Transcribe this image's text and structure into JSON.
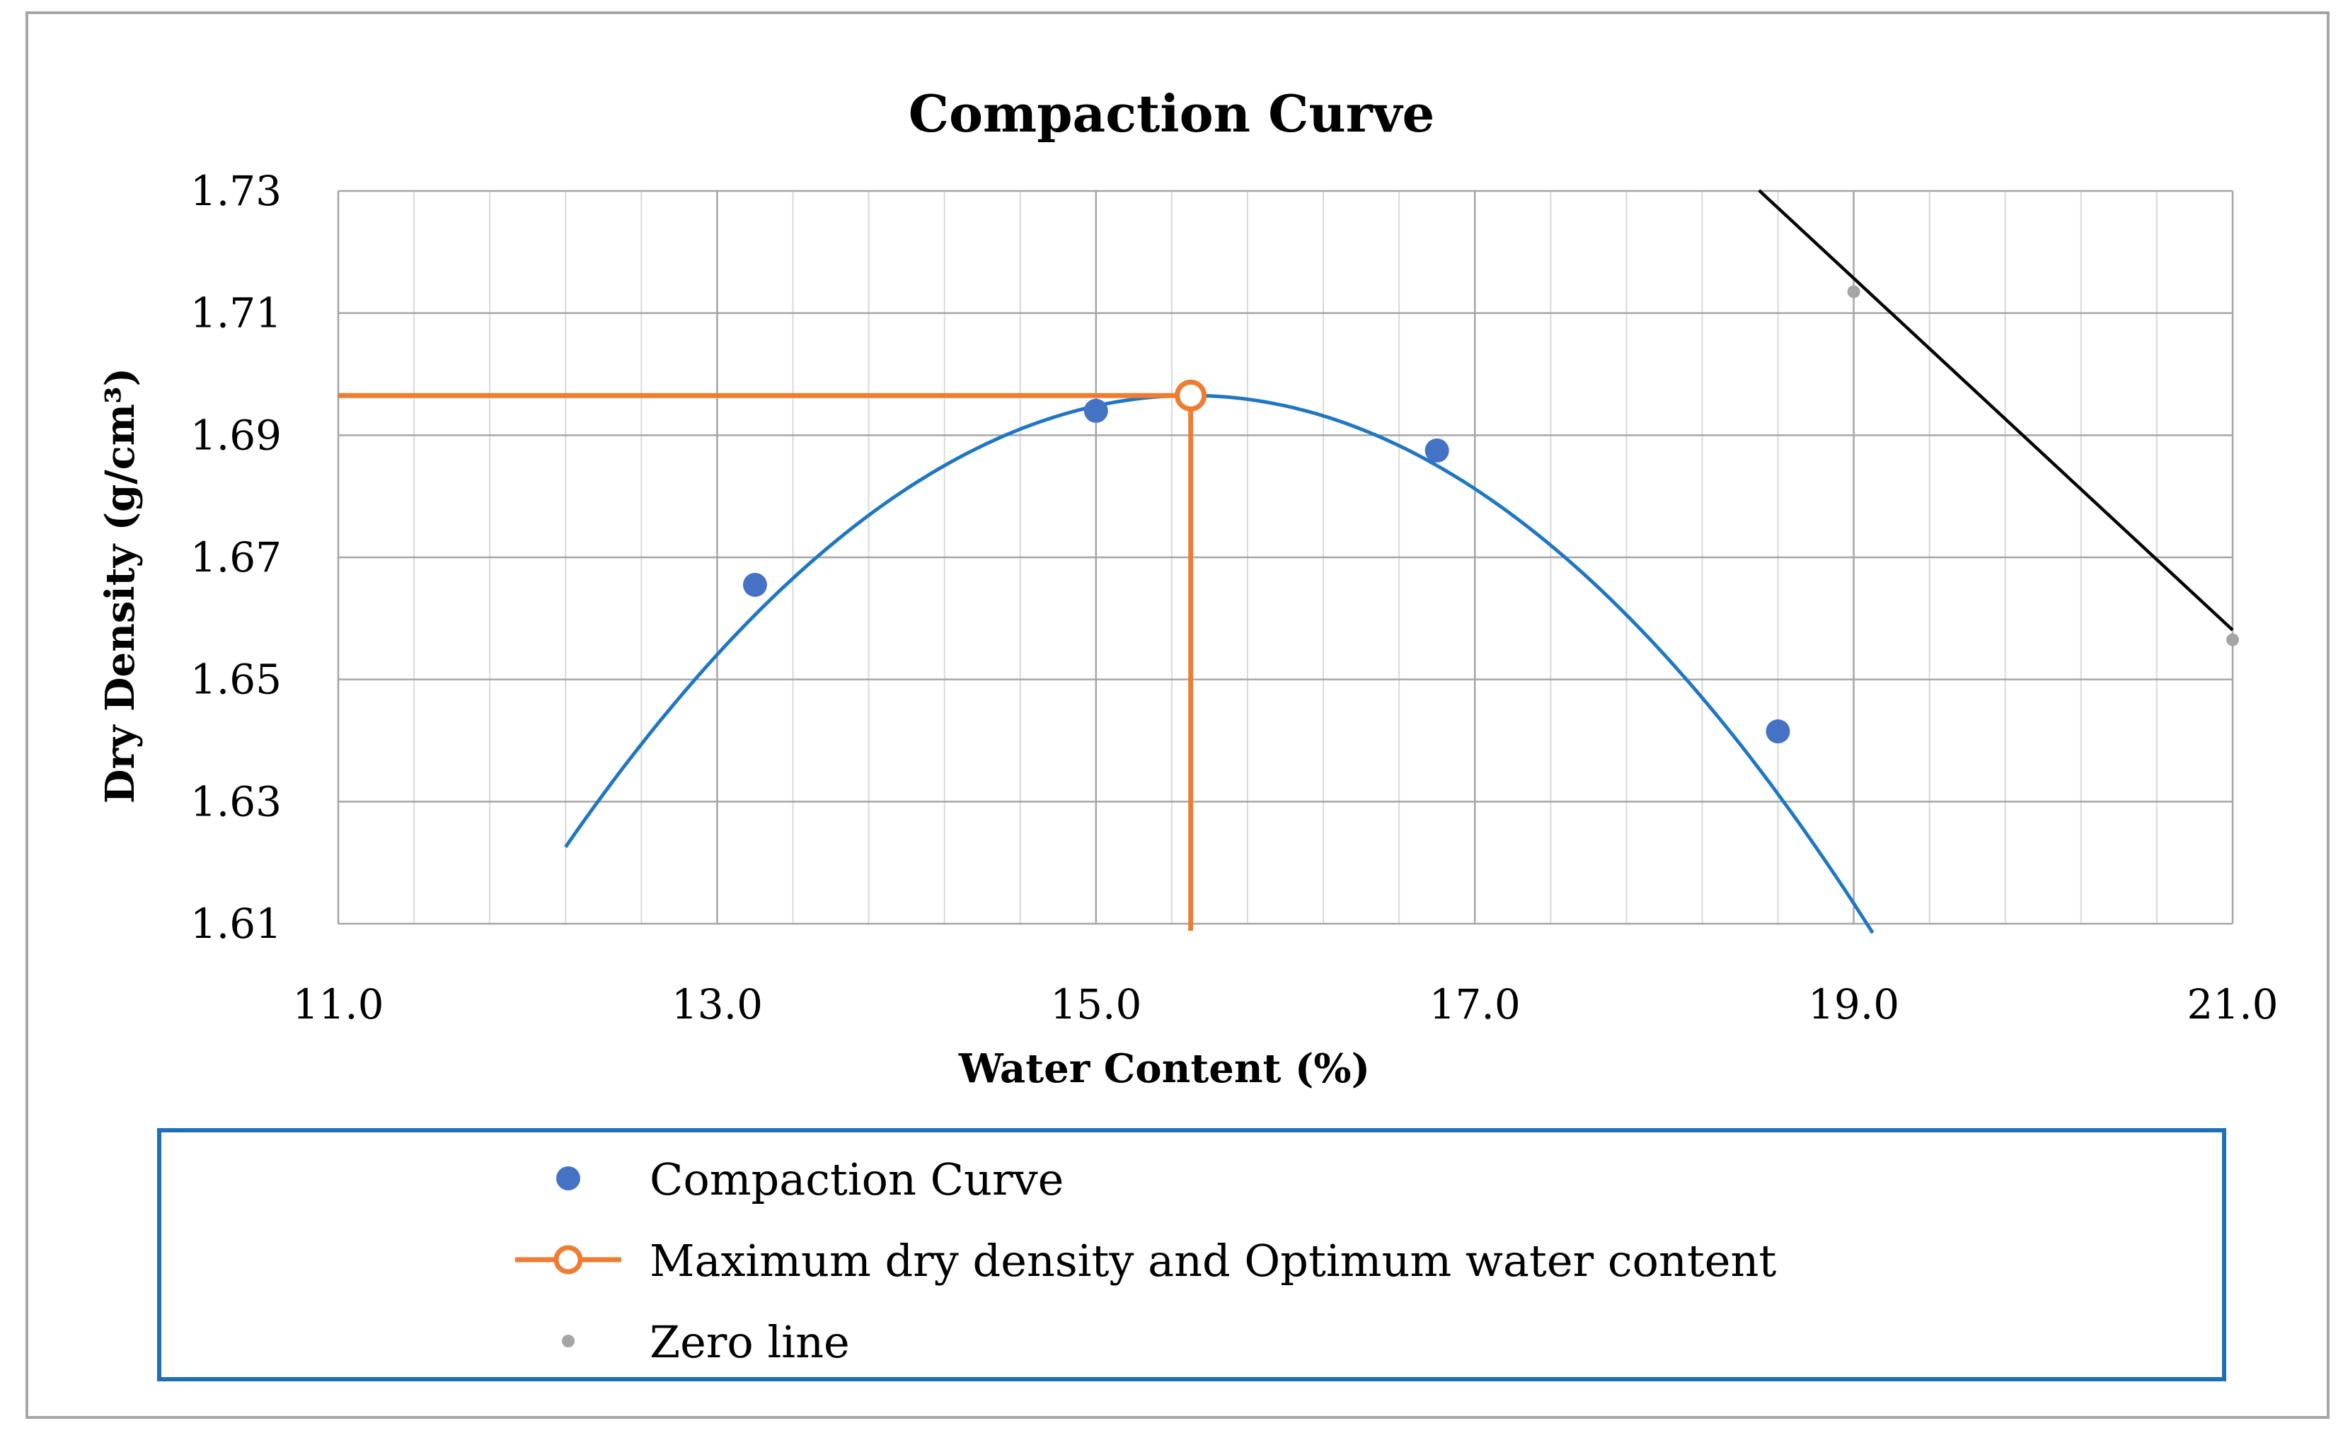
{
  "chart_data": {
    "type": "scatter",
    "title": "Compaction Curve",
    "xlabel": "Water Content (%)",
    "ylabel": "Dry Density (g/cm³)",
    "xlim": [
      11.0,
      21.0
    ],
    "ylim": [
      1.61,
      1.73
    ],
    "x_ticks": [
      11.0,
      13.0,
      15.0,
      17.0,
      19.0,
      21.0
    ],
    "x_tick_labels": [
      "11.0",
      "13.0",
      "15.0",
      "17.0",
      "19.0",
      "21.0"
    ],
    "y_ticks": [
      1.61,
      1.63,
      1.65,
      1.67,
      1.69,
      1.71,
      1.73
    ],
    "y_tick_labels": [
      "1.61",
      "1.63",
      "1.65",
      "1.67",
      "1.69",
      "1.71",
      "1.73"
    ],
    "grid": true,
    "x_minor_step": 0.4,
    "series": [
      {
        "name": "Compaction Curve",
        "kind": "markers",
        "color": "#4472c4",
        "x": [
          13.2,
          15.0,
          16.8,
          18.6
        ],
        "y": [
          1.6655,
          1.694,
          1.6875,
          1.6415
        ]
      },
      {
        "name": "Maximum dry density and Optimum water content",
        "kind": "reference",
        "color": "#ed7d31",
        "x": [
          15.5
        ],
        "y": [
          1.6965
        ]
      },
      {
        "name": "Zero line",
        "kind": "markers",
        "color": "#a5a5a5",
        "x": [
          19.0,
          21.0
        ],
        "y": [
          1.7135,
          1.6565
        ]
      }
    ],
    "fit_curve": {
      "color": "#1f77c4",
      "x_start": 12.2,
      "x_end": 19.1,
      "vertex_x": 15.5,
      "vertex_y": 1.6965,
      "coef_a": -0.00679
    },
    "zero_line_trend": {
      "color": "#000000",
      "x": [
        18.5,
        21.0
      ],
      "y": [
        1.7301,
        1.6581
      ]
    },
    "legend_position": "bottom"
  }
}
